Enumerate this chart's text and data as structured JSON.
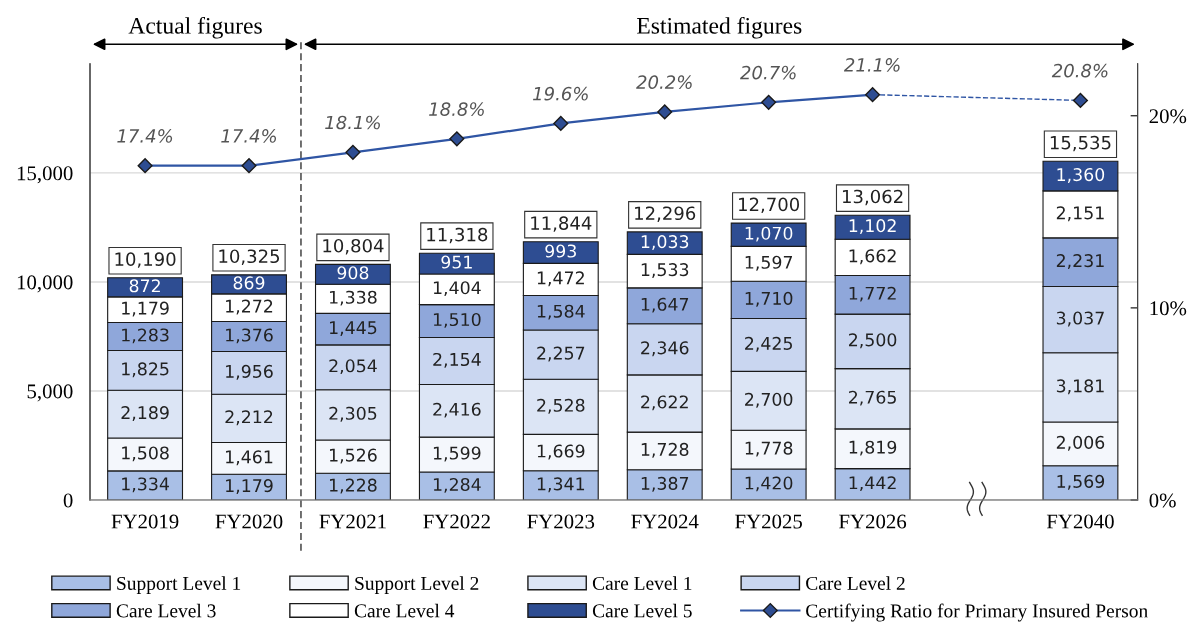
{
  "chart_data": {
    "type": "bar",
    "stacked": true,
    "categories": [
      "FY2019",
      "FY2020",
      "FY2021",
      "FY2022",
      "FY2023",
      "FY2024",
      "FY2025",
      "FY2026",
      null,
      "FY2040"
    ],
    "series": [
      {
        "name": "Support Level 1",
        "color": "#a9bfe6",
        "values": [
          1334,
          1179,
          1228,
          1284,
          1341,
          1387,
          1420,
          1442,
          null,
          1569
        ],
        "value_labels": [
          "1,334",
          "1,179",
          "1,228",
          "1,284",
          "1,341",
          "1,387",
          "1,420",
          "1,442",
          null,
          "1,569"
        ]
      },
      {
        "name": "Support Level 2",
        "color": "#f4f7fc",
        "values": [
          1508,
          1461,
          1526,
          1599,
          1669,
          1728,
          1778,
          1819,
          null,
          2006
        ],
        "value_labels": [
          "1,508",
          "1,461",
          "1,526",
          "1,599",
          "1,669",
          "1,728",
          "1,778",
          "1,819",
          null,
          "2,006"
        ]
      },
      {
        "name": "Care Level 1",
        "color": "#dce5f5",
        "values": [
          2189,
          2212,
          2305,
          2416,
          2528,
          2622,
          2700,
          2765,
          null,
          3181
        ],
        "value_labels": [
          "2,189",
          "2,212",
          "2,305",
          "2,416",
          "2,528",
          "2,622",
          "2,700",
          "2,765",
          null,
          "3,181"
        ]
      },
      {
        "name": "Care Level 2",
        "color": "#c9d6f0",
        "values": [
          1825,
          1956,
          2054,
          2154,
          2257,
          2346,
          2425,
          2500,
          null,
          3037
        ],
        "value_labels": [
          "1,825",
          "1,956",
          "2,054",
          "2,154",
          "2,257",
          "2,346",
          "2,425",
          "2,500",
          null,
          "3,037"
        ]
      },
      {
        "name": "Care Level 3",
        "color": "#8fa7da",
        "values": [
          1283,
          1376,
          1445,
          1510,
          1584,
          1647,
          1710,
          1772,
          null,
          2231
        ],
        "value_labels": [
          "1,283",
          "1,376",
          "1,445",
          "1,510",
          "1,584",
          "1,647",
          "1,710",
          "1,772",
          null,
          "2,231"
        ]
      },
      {
        "name": "Care Level 4",
        "color": "#ffffff",
        "values": [
          1179,
          1272,
          1338,
          1404,
          1472,
          1533,
          1597,
          1662,
          null,
          2151
        ],
        "value_labels": [
          "1,179",
          "1,272",
          "1,338",
          "1,404",
          "1,472",
          "1,533",
          "1,597",
          "1,662",
          null,
          "2,151"
        ]
      },
      {
        "name": "Care Level 5",
        "color": "#2e4d92",
        "values": [
          872,
          869,
          908,
          951,
          993,
          1033,
          1070,
          1102,
          null,
          1360
        ],
        "value_labels": [
          "872",
          "869",
          "908",
          "951",
          "993",
          "1,033",
          "1,070",
          "1,102",
          null,
          "1,360"
        ]
      },
      {
        "name": "Certifying Ratio for Primary Insured Person",
        "type": "line",
        "axis": "y2",
        "color": "#2f55a4",
        "marker": "diamond",
        "line_style": "solid",
        "values": [
          17.4,
          17.4,
          18.1,
          18.8,
          19.6,
          20.2,
          20.7,
          21.1,
          null,
          20.8
        ],
        "value_labels": [
          "17.4%",
          "17.4%",
          "18.1%",
          "18.8%",
          "19.6%",
          "20.2%",
          "20.7%",
          "21.1%",
          null,
          "20.8%"
        ]
      }
    ],
    "totals": [
      "10,190",
      "10,325",
      "10,804",
      "11,318",
      "11,844",
      "12,296",
      "12,700",
      "13,062",
      null,
      "15,535"
    ],
    "ylim": [
      0,
      20000
    ],
    "yticks": [
      0,
      {
        "value": 5000,
        "label": "5,000"
      },
      {
        "value": 10000,
        "label": "10,000"
      },
      {
        "value": 15000,
        "label": "15,000"
      }
    ],
    "y2lim": [
      0,
      22.7
    ],
    "y2ticks": [
      {
        "value": 0,
        "label": "0%"
      },
      {
        "value": 10,
        "label": "10%"
      },
      {
        "value": 20,
        "label": "20%"
      }
    ],
    "annotations": [
      "Actual figures",
      "Estimated figures"
    ],
    "grid": "y",
    "legend": "bottom"
  }
}
